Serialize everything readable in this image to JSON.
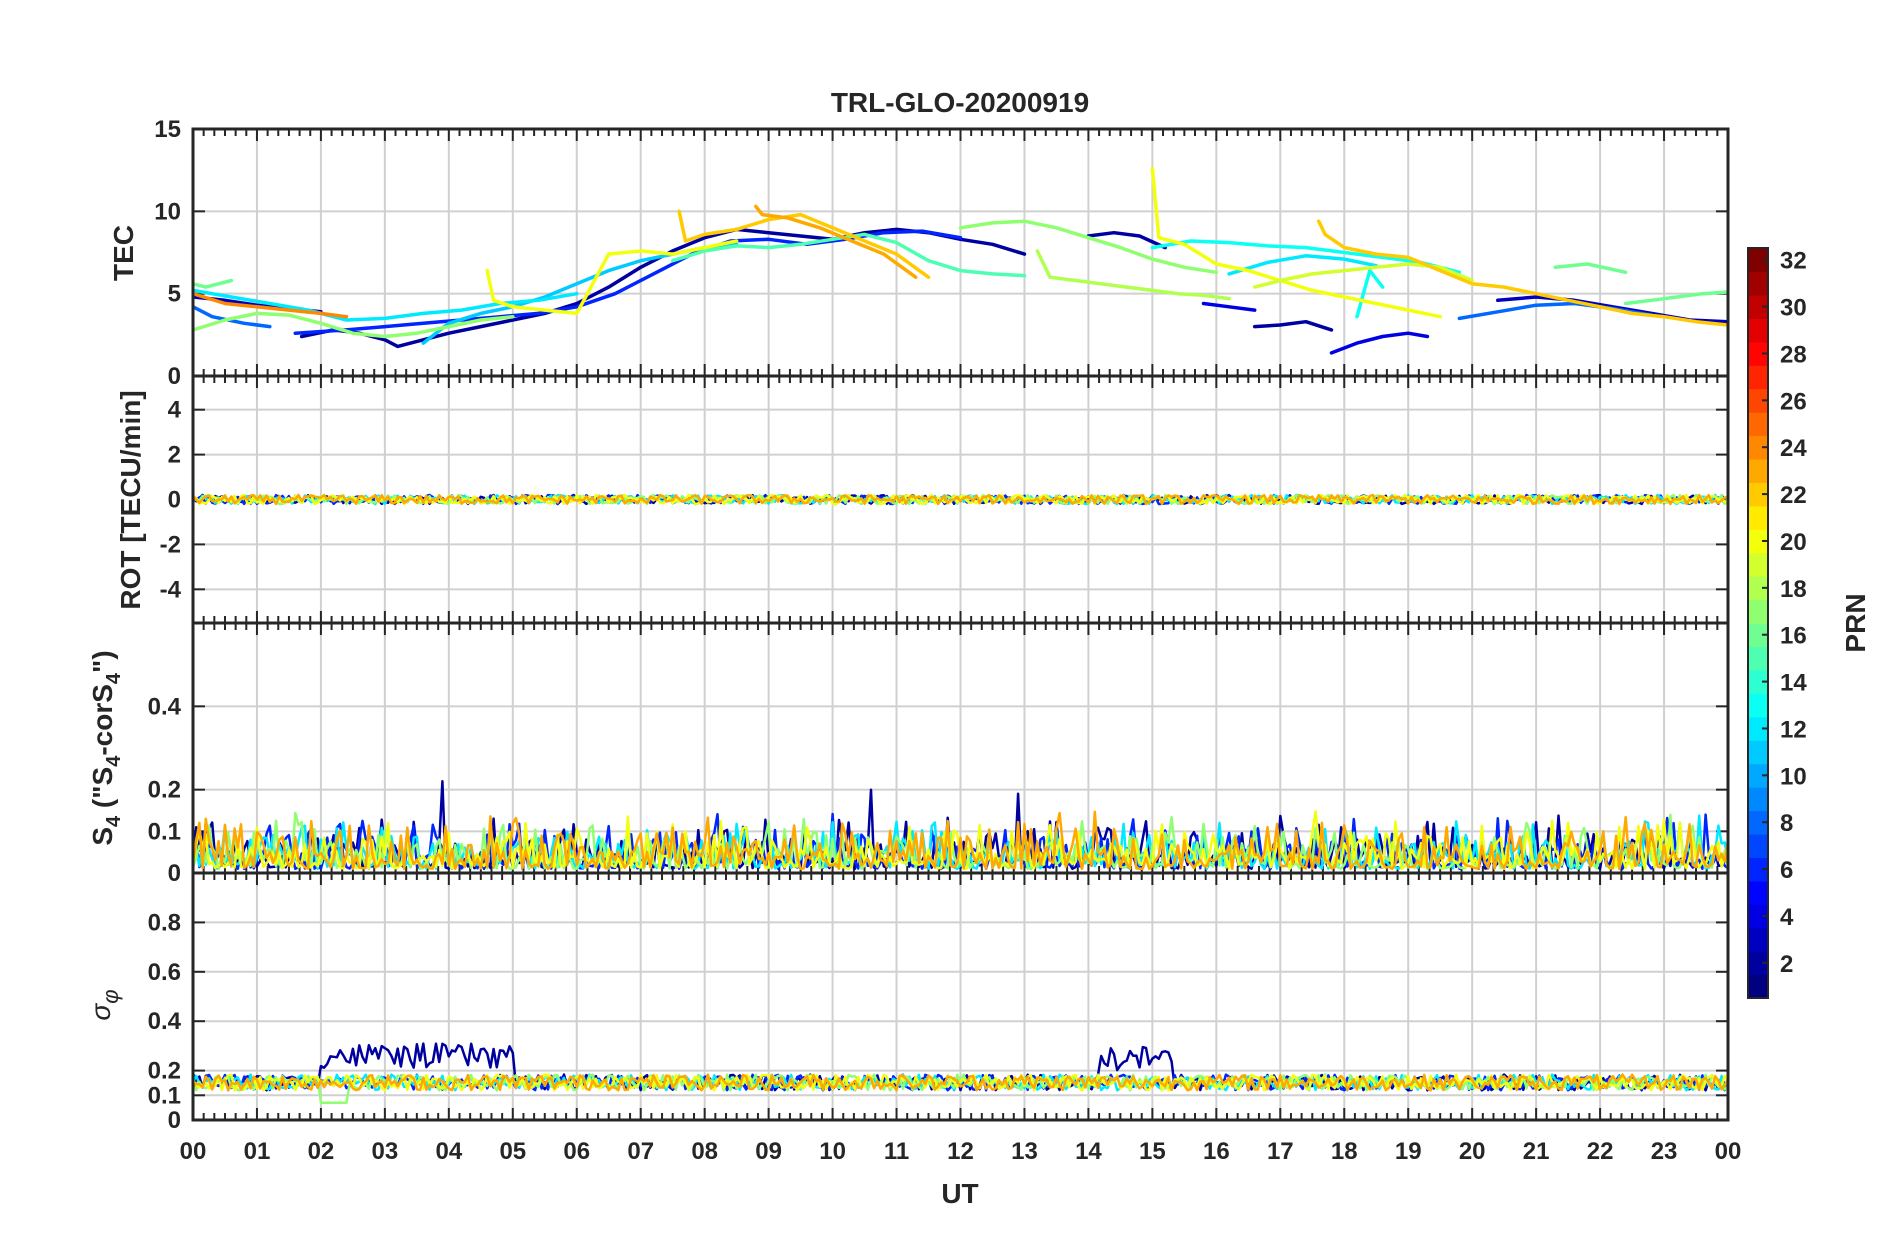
{
  "chart_data": {
    "type": "line",
    "title": "TRL-GLO-20200919",
    "xlabel": "UT",
    "x_ticks": [
      "00",
      "01",
      "02",
      "03",
      "04",
      "05",
      "06",
      "07",
      "08",
      "09",
      "10",
      "11",
      "12",
      "13",
      "14",
      "15",
      "16",
      "17",
      "18",
      "19",
      "20",
      "21",
      "22",
      "23",
      "00"
    ],
    "xlim": [
      0,
      24
    ],
    "panels": [
      {
        "id": "tec",
        "ylabel": "TEC",
        "ylim": [
          0,
          15
        ],
        "yticks": [
          "0",
          "5",
          "10",
          "15"
        ],
        "ytick_values": [
          0,
          5,
          10,
          15
        ],
        "series": [
          {
            "prn": 2,
            "x": [
              1.7,
              2.2,
              2.6,
              3.0,
              3.2,
              3.6,
              4.0,
              4.5,
              5.0,
              5.5,
              6.0,
              6.5,
              7.0,
              7.5,
              8.0,
              8.5,
              9.0,
              9.5,
              10.0,
              10.5,
              11.0,
              11.5,
              12.0,
              12.5,
              13.0
            ],
            "y": [
              2.4,
              2.8,
              2.6,
              2.2,
              1.8,
              2.2,
              2.6,
              3.0,
              3.4,
              3.8,
              4.4,
              5.4,
              6.6,
              7.6,
              8.4,
              8.9,
              8.7,
              8.5,
              8.3,
              8.7,
              8.9,
              8.7,
              8.3,
              8.0,
              7.4
            ]
          },
          {
            "prn": 3,
            "x": [
              0.0,
              0.5,
              1.0,
              1.5,
              2.0
            ],
            "y": [
              4.8,
              4.6,
              4.3,
              4.1,
              3.9
            ]
          },
          {
            "prn": 2,
            "x": [
              14.0,
              14.4,
              14.8,
              15.2
            ],
            "y": [
              8.5,
              8.7,
              8.5,
              7.8
            ]
          },
          {
            "prn": 4,
            "x": [
              15.8,
              16.2,
              16.6
            ],
            "y": [
              4.4,
              4.2,
              4.0
            ]
          },
          {
            "prn": 2,
            "x": [
              16.6,
              17.0,
              17.4,
              17.8
            ],
            "y": [
              3.0,
              3.1,
              3.3,
              2.8
            ]
          },
          {
            "prn": 4,
            "x": [
              17.8,
              18.2,
              18.6,
              19.0,
              19.3
            ],
            "y": [
              1.4,
              2.0,
              2.4,
              2.6,
              2.4
            ]
          },
          {
            "prn": 3,
            "x": [
              20.4,
              21.0,
              21.6,
              22.2,
              22.8,
              23.4,
              24.0
            ],
            "y": [
              4.6,
              4.8,
              4.6,
              4.2,
              3.8,
              3.4,
              3.3
            ]
          },
          {
            "prn": 6,
            "x": [
              1.6,
              2.4,
              3.0,
              3.6,
              4.2,
              4.8,
              5.4,
              6.0,
              6.6,
              7.2,
              7.8,
              8.4,
              9.0,
              9.6,
              10.2,
              10.8,
              11.4,
              12.0
            ],
            "y": [
              2.6,
              2.8,
              3.0,
              3.2,
              3.4,
              3.6,
              3.8,
              4.2,
              5.0,
              6.2,
              7.4,
              8.2,
              8.3,
              8.0,
              8.3,
              8.7,
              8.8,
              8.4
            ]
          },
          {
            "prn": 8,
            "x": [
              0.0,
              0.3,
              0.8,
              1.2
            ],
            "y": [
              4.2,
              3.6,
              3.2,
              3.0
            ]
          },
          {
            "prn": 8,
            "x": [
              19.8,
              20.4,
              21.0,
              21.6,
              22.2,
              22.8
            ],
            "y": [
              3.5,
              3.9,
              4.3,
              4.4,
              4.1,
              3.7
            ]
          },
          {
            "prn": 11,
            "x": [
              3.6,
              4.0,
              4.5,
              5.0,
              5.5,
              6.0,
              6.5,
              7.0,
              7.5,
              8.0,
              8.5
            ],
            "y": [
              2.0,
              3.2,
              3.8,
              4.2,
              4.8,
              5.6,
              6.4,
              7.0,
              7.4,
              7.8,
              8.0
            ]
          },
          {
            "prn": 12,
            "x": [
              0.0,
              0.6,
              1.2,
              1.8,
              2.4,
              3.0,
              3.6,
              4.2,
              4.8,
              5.4,
              6.0
            ],
            "y": [
              5.2,
              4.8,
              4.4,
              4.0,
              3.4,
              3.5,
              3.8,
              4.0,
              4.4,
              4.6,
              5.0
            ]
          },
          {
            "prn": 13,
            "x": [
              15.0,
              15.6,
              16.2,
              16.8,
              17.4,
              18.0,
              18.6,
              19.2,
              19.8
            ],
            "y": [
              7.8,
              8.2,
              8.1,
              7.9,
              7.8,
              7.5,
              7.2,
              6.9,
              6.3
            ]
          },
          {
            "prn": 12,
            "x": [
              16.2,
              16.8,
              17.4,
              18.0,
              18.5
            ],
            "y": [
              6.2,
              6.9,
              7.3,
              7.1,
              6.7
            ]
          },
          {
            "prn": 13,
            "x": [
              18.2,
              18.4,
              18.6
            ],
            "y": [
              3.6,
              6.4,
              5.4
            ]
          },
          {
            "prn": 15,
            "x": [
              7.5,
              8.0,
              8.5,
              9.0,
              9.5,
              10.0,
              10.5,
              11.0,
              11.5,
              12.0,
              12.5,
              13.0
            ],
            "y": [
              7.0,
              7.6,
              7.9,
              7.8,
              8.0,
              8.3,
              8.6,
              8.1,
              7.0,
              6.4,
              6.2,
              6.1
            ]
          },
          {
            "prn": 16,
            "x": [
              0.0,
              0.2,
              0.6
            ],
            "y": [
              5.6,
              5.4,
              5.8
            ]
          },
          {
            "prn": 16,
            "x": [
              22.4,
              22.8,
              23.2,
              23.6,
              24.0
            ],
            "y": [
              4.4,
              4.6,
              4.8,
              5.0,
              5.1
            ]
          },
          {
            "prn": 16,
            "x": [
              21.3,
              21.8,
              22.4
            ],
            "y": [
              6.6,
              6.8,
              6.3
            ]
          },
          {
            "prn": 17,
            "x": [
              0.0,
              0.5,
              1.0,
              1.5,
              2.0,
              2.5,
              3.0,
              3.5,
              4.0,
              4.5,
              5.0
            ],
            "y": [
              2.8,
              3.4,
              3.8,
              3.7,
              3.2,
              2.6,
              2.4,
              2.6,
              3.0,
              3.4,
              3.6
            ]
          },
          {
            "prn": 17,
            "x": [
              12.0,
              12.5,
              13.0,
              13.5,
              14.0,
              14.5,
              15.0,
              15.5,
              16.0
            ],
            "y": [
              9.0,
              9.3,
              9.4,
              9.0,
              8.4,
              7.8,
              7.1,
              6.6,
              6.3
            ]
          },
          {
            "prn": 18,
            "x": [
              13.2,
              13.4,
              13.8,
              14.2,
              14.6,
              15.0,
              15.4,
              15.8,
              16.2
            ],
            "y": [
              7.6,
              6.0,
              5.8,
              5.6,
              5.4,
              5.2,
              5.0,
              4.9,
              4.7
            ]
          },
          {
            "prn": 20,
            "x": [
              4.6,
              4.7,
              5.0,
              5.5,
              6.0,
              6.5,
              7.0,
              7.5,
              8.0,
              8.5
            ],
            "y": [
              6.4,
              4.6,
              4.2,
              4.0,
              3.8,
              7.4,
              7.6,
              7.4,
              7.8,
              8.2
            ]
          },
          {
            "prn": 20,
            "x": [
              15.0,
              15.1,
              15.5,
              16.0,
              16.5,
              17.0,
              17.5,
              18.0,
              18.5,
              19.0,
              19.5
            ],
            "y": [
              12.6,
              8.4,
              8.0,
              6.8,
              6.4,
              5.8,
              5.2,
              4.8,
              4.4,
              4.0,
              3.6
            ]
          },
          {
            "prn": 19,
            "x": [
              16.6,
              17.0,
              17.5,
              18.0,
              18.5,
              19.0,
              19.5,
              20.0
            ],
            "y": [
              5.4,
              5.8,
              6.2,
              6.4,
              6.6,
              6.8,
              6.6,
              5.8
            ]
          },
          {
            "prn": 22,
            "x": [
              7.6,
              7.7,
              8.0,
              8.5,
              9.0,
              9.5,
              10.0,
              10.5,
              11.0,
              11.5
            ],
            "y": [
              10.0,
              8.2,
              8.6,
              8.9,
              9.5,
              9.8,
              9.0,
              8.2,
              7.4,
              6.0
            ]
          },
          {
            "prn": 23,
            "x": [
              8.8,
              8.9,
              9.3,
              9.8,
              10.3,
              10.8,
              11.3
            ],
            "y": [
              10.3,
              9.8,
              9.6,
              9.0,
              8.2,
              7.4,
              6.0
            ]
          },
          {
            "prn": 22,
            "x": [
              17.6,
              17.7,
              18.0,
              18.5,
              19.0,
              19.5,
              20.0,
              20.5,
              21.0,
              21.5,
              22.0,
              22.5,
              23.0,
              23.5,
              24.0
            ],
            "y": [
              9.4,
              8.6,
              7.8,
              7.4,
              7.2,
              6.4,
              5.6,
              5.4,
              5.0,
              4.6,
              4.2,
              3.8,
              3.6,
              3.3,
              3.1
            ]
          },
          {
            "prn": 24,
            "x": [
              0.0,
              0.5,
              1.0,
              1.5,
              2.0,
              2.4
            ],
            "y": [
              5.0,
              4.4,
              4.2,
              4.0,
              3.8,
              3.6
            ]
          }
        ]
      },
      {
        "id": "rot",
        "ylabel": "ROT [TECU/min]",
        "ylim": [
          -5.5,
          5.5
        ],
        "yticks": [
          "-4",
          "-2",
          "0",
          "2",
          "4"
        ],
        "ytick_values": [
          -4,
          -2,
          0,
          2,
          4
        ],
        "noise_band": [
          -0.25,
          0.25
        ],
        "prns_shown": [
          2,
          6,
          12,
          17,
          20,
          23
        ]
      },
      {
        "id": "s4",
        "ylabel": "S4 (\"S4-corS4\")",
        "ylim": [
          0,
          0.6
        ],
        "yticks": [
          "0",
          "0.1",
          "0.2",
          "0.4"
        ],
        "ytick_values": [
          0,
          0.1,
          0.2,
          0.4
        ],
        "typical_range": [
          0.0,
          0.14
        ],
        "peaks": [
          {
            "x": 3.9,
            "y": 0.22
          },
          {
            "x": 10.6,
            "y": 0.2
          },
          {
            "x": 12.9,
            "y": 0.19
          }
        ],
        "prns_shown": [
          2,
          6,
          12,
          17,
          20,
          23
        ]
      },
      {
        "id": "sigma",
        "ylabel": "σφ",
        "ylim": [
          0,
          1
        ],
        "yticks": [
          "0",
          "0.1",
          "0.2",
          "0.4",
          "0.6",
          "0.8"
        ],
        "ytick_values": [
          0,
          0.1,
          0.2,
          0.4,
          0.6,
          0.8
        ],
        "typical_range": [
          0.12,
          0.2
        ],
        "enhanced_intervals": [
          {
            "x": [
              2.0,
              5.0
            ],
            "y": 0.27,
            "prn": 2
          },
          {
            "x": [
              14.2,
              15.3
            ],
            "y": 0.26,
            "prn": 2
          }
        ],
        "dip": {
          "x": [
            2.0,
            2.4
          ],
          "y": 0.07
        },
        "prns_shown": [
          2,
          6,
          12,
          17,
          20,
          23
        ]
      }
    ],
    "colorbar": {
      "label": "PRN",
      "range": [
        1,
        32
      ],
      "ticks": [
        "2",
        "4",
        "6",
        "8",
        "10",
        "12",
        "14",
        "16",
        "18",
        "20",
        "22",
        "24",
        "26",
        "28",
        "30",
        "32"
      ],
      "tick_values": [
        2,
        4,
        6,
        8,
        10,
        12,
        14,
        16,
        18,
        20,
        22,
        24,
        26,
        28,
        30,
        32
      ],
      "colormap": "jet"
    }
  }
}
